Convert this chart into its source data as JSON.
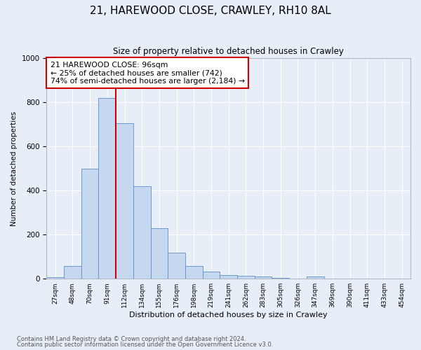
{
  "title1": "21, HAREWOOD CLOSE, CRAWLEY, RH10 8AL",
  "title2": "Size of property relative to detached houses in Crawley",
  "xlabel": "Distribution of detached houses by size in Crawley",
  "ylabel": "Number of detached properties",
  "bar_labels": [
    "27sqm",
    "48sqm",
    "70sqm",
    "91sqm",
    "112sqm",
    "134sqm",
    "155sqm",
    "176sqm",
    "198sqm",
    "219sqm",
    "241sqm",
    "262sqm",
    "283sqm",
    "305sqm",
    "326sqm",
    "347sqm",
    "369sqm",
    "390sqm",
    "411sqm",
    "433sqm",
    "454sqm"
  ],
  "bar_values": [
    8,
    58,
    500,
    820,
    705,
    418,
    228,
    118,
    58,
    32,
    15,
    13,
    10,
    5,
    0,
    10,
    0,
    0,
    0,
    0,
    0
  ],
  "bar_color": "#c5d8f0",
  "bar_edge_color": "#5b8ec7",
  "bg_color": "#e8eef8",
  "grid_color": "#ffffff",
  "vline_color": "#cc0000",
  "ylim": [
    0,
    1000
  ],
  "annotation_text": "21 HAREWOOD CLOSE: 96sqm\n← 25% of detached houses are smaller (742)\n74% of semi-detached houses are larger (2,184) →",
  "annotation_box_color": "#cc0000",
  "footnote1": "Contains HM Land Registry data © Crown copyright and database right 2024.",
  "footnote2": "Contains public sector information licensed under the Open Government Licence v3.0.",
  "vline_pos": 3.5
}
